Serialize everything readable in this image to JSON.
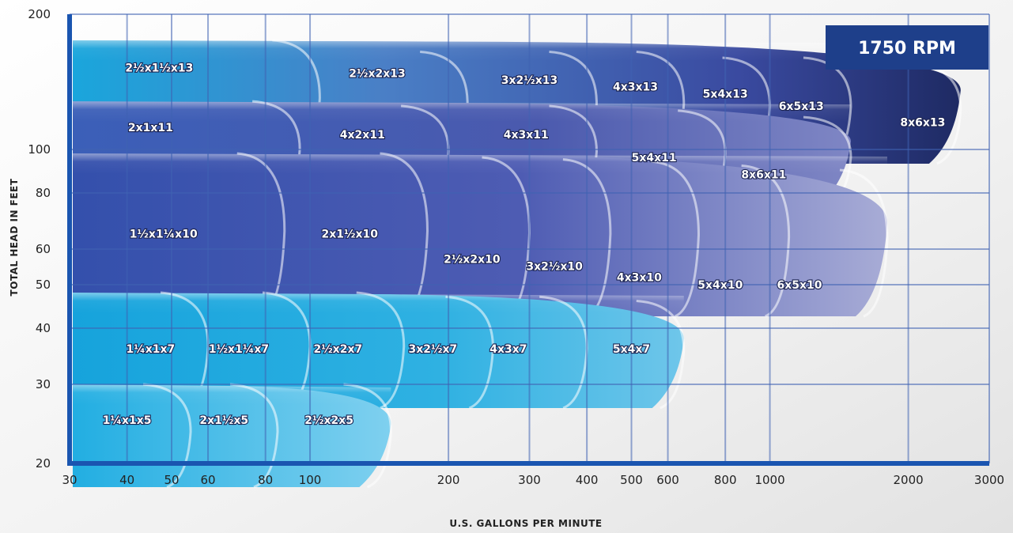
{
  "chart_data": {
    "type": "area",
    "badge": "1750 RPM",
    "xlabel": "U.S. GALLONS PER MINUTE",
    "ylabel": "TOTAL HEAD IN FEET",
    "x_scale": "log",
    "y_scale": "log",
    "xlim": [
      30,
      3000
    ],
    "ylim": [
      20,
      200
    ],
    "x_ticks": [
      30,
      40,
      50,
      60,
      80,
      100,
      200,
      300,
      400,
      500,
      600,
      800,
      1000,
      2000,
      3000
    ],
    "x_tick_labels": [
      "30",
      "40",
      "50",
      "60",
      "80",
      "100",
      "200",
      "300",
      "400",
      "500",
      "600",
      "800",
      "1000",
      "2000",
      "3000"
    ],
    "y_ticks": [
      20,
      30,
      40,
      50,
      60,
      80,
      100,
      200
    ],
    "y_tick_labels": [
      "20",
      "30",
      "40",
      "50",
      "60",
      "80",
      "100",
      "200"
    ],
    "grid": true,
    "series": [
      {
        "name": "2½x1½x13",
        "group": "13",
        "label_at": [
          47,
          152
        ],
        "x_max": 105,
        "head": 175
      },
      {
        "name": "2½x2x13",
        "group": "13",
        "label_at": [
          140,
          148
        ],
        "x_max": 220,
        "head": 165
      },
      {
        "name": "3x2½x13",
        "group": "13",
        "label_at": [
          300,
          143
        ],
        "x_max": 420,
        "head": 165
      },
      {
        "name": "4x3x13",
        "group": "13",
        "label_at": [
          510,
          138
        ],
        "x_max": 650,
        "head": 165
      },
      {
        "name": "5x4x13",
        "group": "13",
        "label_at": [
          800,
          133
        ],
        "x_max": 1000,
        "head": 160
      },
      {
        "name": "6x5x13",
        "group": "13",
        "label_at": [
          1170,
          125
        ],
        "x_max": 1500,
        "head": 160
      },
      {
        "name": "8x6x13",
        "group": "13",
        "label_at": [
          2150,
          115
        ],
        "x_max": 2600,
        "head": 155
      },
      {
        "name": "2x1x11",
        "group": "11",
        "label_at": [
          45,
          112
        ],
        "x_max": 95,
        "head": 128
      },
      {
        "name": "4x2x11",
        "group": "11",
        "label_at": [
          130,
          108
        ],
        "x_max": 200,
        "head": 125
      },
      {
        "name": "4x3x11",
        "group": "11",
        "label_at": [
          295,
          108
        ],
        "x_max": 420,
        "head": 125
      },
      {
        "name": "5x4x11",
        "group": "11",
        "label_at": [
          560,
          96
        ],
        "x_max": 800,
        "head": 122
      },
      {
        "name": "8x6x11",
        "group": "11",
        "label_at": [
          970,
          88
        ],
        "x_max": 1500,
        "head": 118
      },
      {
        "name": "1½x1¼x10",
        "group": "10",
        "label_at": [
          48,
          65
        ],
        "x_max": 88,
        "head": 98
      },
      {
        "name": "2x1½x10",
        "group": "10",
        "label_at": [
          122,
          65
        ],
        "x_max": 180,
        "head": 98
      },
      {
        "name": "2½x2x10",
        "group": "10",
        "label_at": [
          225,
          57
        ],
        "x_max": 300,
        "head": 96
      },
      {
        "name": "3x2½x10",
        "group": "10",
        "label_at": [
          340,
          55
        ],
        "x_max": 450,
        "head": 95
      },
      {
        "name": "4x3x10",
        "group": "10",
        "label_at": [
          520,
          52
        ],
        "x_max": 700,
        "head": 94
      },
      {
        "name": "5x4x10",
        "group": "10",
        "label_at": [
          780,
          50
        ],
        "x_max": 1100,
        "head": 92
      },
      {
        "name": "6x5x10",
        "group": "10",
        "label_at": [
          1160,
          50
        ],
        "x_max": 1800,
        "head": 90
      },
      {
        "name": "1¼x1x7",
        "group": "7",
        "label_at": [
          45,
          36
        ],
        "x_max": 60,
        "head": 48
      },
      {
        "name": "1½x1¼x7",
        "group": "7",
        "label_at": [
          70,
          36
        ],
        "x_max": 100,
        "head": 48
      },
      {
        "name": "2½x2x7",
        "group": "7",
        "label_at": [
          115,
          36
        ],
        "x_max": 160,
        "head": 48
      },
      {
        "name": "3x2½x7",
        "group": "7",
        "label_at": [
          185,
          36
        ],
        "x_max": 250,
        "head": 47
      },
      {
        "name": "4x3x7",
        "group": "7",
        "label_at": [
          270,
          36
        ],
        "x_max": 400,
        "head": 47
      },
      {
        "name": "5x4x7",
        "group": "7",
        "label_at": [
          500,
          36
        ],
        "x_max": 650,
        "head": 46
      },
      {
        "name": "1¼x1x5",
        "group": "5",
        "label_at": [
          40,
          25
        ],
        "x_max": 55,
        "head": 30
      },
      {
        "name": "2x1½x5",
        "group": "5",
        "label_at": [
          65,
          25
        ],
        "x_max": 85,
        "head": 30
      },
      {
        "name": "2½x2x5",
        "group": "5",
        "label_at": [
          110,
          25
        ],
        "x_max": 150,
        "head": 30
      }
    ]
  }
}
